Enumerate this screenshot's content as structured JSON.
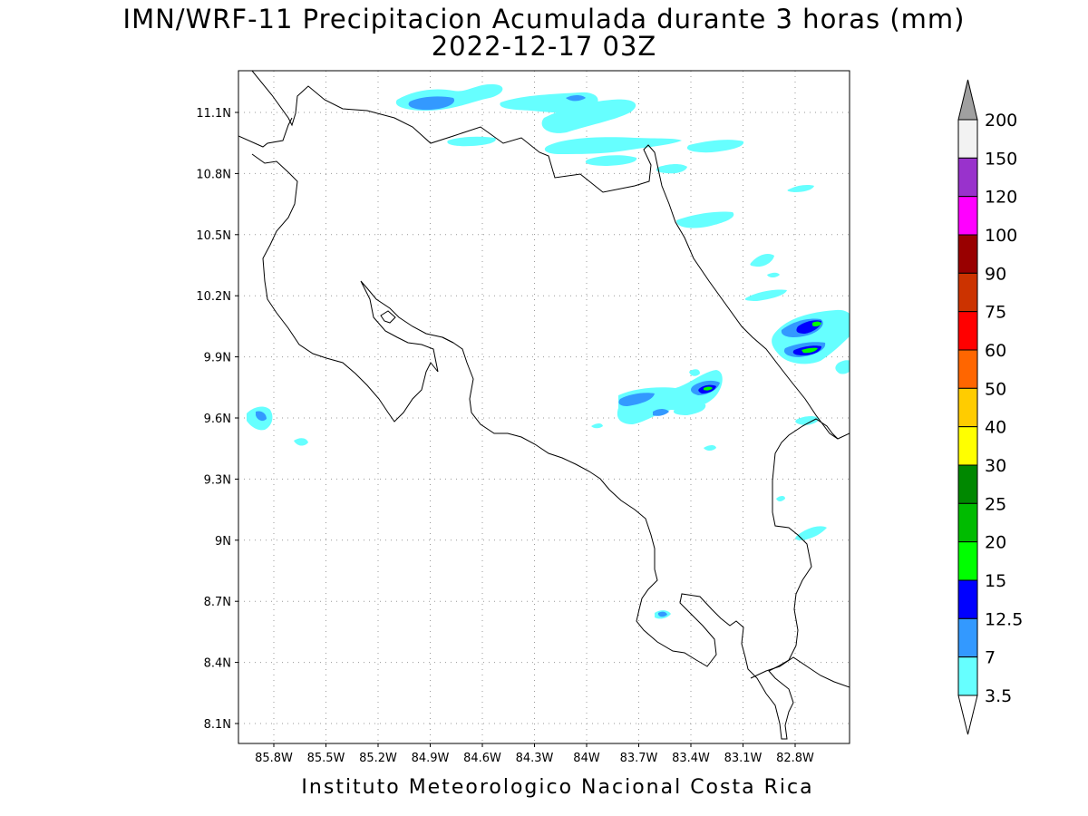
{
  "title": {
    "line1": "IMN/WRF-11 Precipitacion Acumulada durante 3 horas (mm)",
    "line2": "2022-12-17 03Z"
  },
  "credit": "Instituto Meteorologico Nacional Costa Rica",
  "map": {
    "lon_range": [
      -86.05,
      -83.05
    ],
    "lat_range": [
      8.0,
      11.3
    ],
    "lat_ticks": [
      "11.1N",
      "10.8N",
      "10.5N",
      "10.2N",
      "9.9N",
      "9.6N",
      "9.3N",
      "9N",
      "8.7N",
      "8.4N",
      "8.1N"
    ],
    "lon_ticks": [
      "85.8W",
      "85.5W",
      "85.2W",
      "84.9W",
      "84.6W",
      "84.3W",
      "84W",
      "83.7W",
      "83.4W",
      "83.1W",
      "82.8W"
    ],
    "grid": "dotted"
  },
  "colorbar": {
    "labels": [
      "200",
      "150",
      "120",
      "100",
      "90",
      "75",
      "60",
      "50",
      "40",
      "30",
      "25",
      "20",
      "15",
      "12.5",
      "7",
      "3.5"
    ],
    "colors": [
      "#a0a0a0",
      "#f2f2f2",
      "#9932cc",
      "#ff00ff",
      "#990000",
      "#cc3300",
      "#ff0000",
      "#ff6600",
      "#ffcc00",
      "#ffff00",
      "#008800",
      "#00bb00",
      "#00ff00",
      "#0000ff",
      "#3399ff",
      "#66ffff",
      "#ffffff"
    ]
  },
  "precip_colors": {
    "light": "#66ffff",
    "mid": "#3399ff",
    "heavy": "#0000ff",
    "green": "#00ff00"
  }
}
